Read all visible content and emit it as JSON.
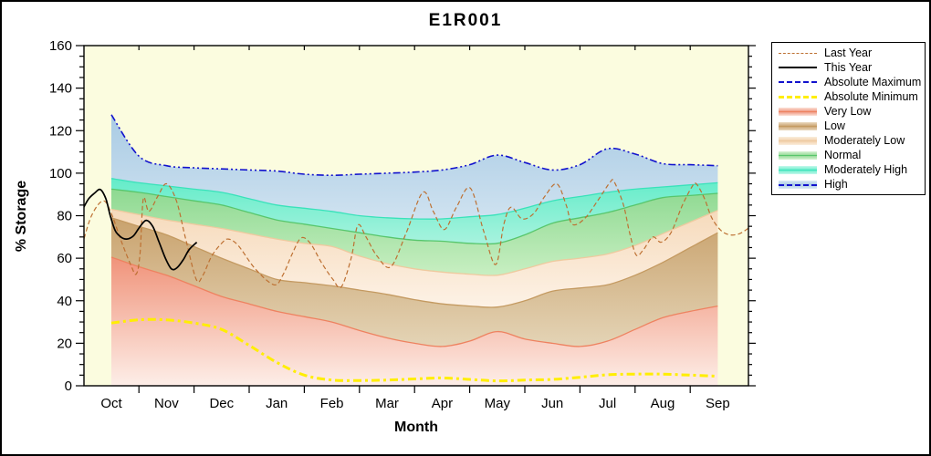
{
  "chart": {
    "title": "E1R001",
    "x_axis": {
      "label": "Month",
      "labels": [
        "Oct",
        "Nov",
        "Dec",
        "Jan",
        "Feb",
        "Mar",
        "Apr",
        "May",
        "Jun",
        "Jul",
        "Aug",
        "Sep"
      ]
    },
    "y_axis": {
      "label": "% Storage",
      "min": 0,
      "max": 160,
      "major_step": 20,
      "minor_step": 5
    },
    "legend": {
      "items": [
        {
          "label": "Last Year",
          "type": "line",
          "stroke": "#bd7032",
          "style": "dashed",
          "weight": 1
        },
        {
          "label": "This Year",
          "type": "line",
          "stroke": "#000000",
          "style": "solid",
          "weight": 2
        },
        {
          "label": "Absolute Maximum",
          "type": "line",
          "stroke": "#1212cd",
          "style": "dashed",
          "weight": 2
        },
        {
          "label": "Absolute Minimum",
          "type": "line",
          "stroke": "#ffee00",
          "style": "dashed",
          "weight": 3
        },
        {
          "label": "Very Low",
          "type": "band",
          "fill": "#f0937a",
          "pale": "#fbe2da",
          "edge": "#ee8260"
        },
        {
          "label": "Low",
          "type": "band",
          "fill": "#c9a26d",
          "pale": "#ead9c0",
          "edge": "#c49a61"
        },
        {
          "label": "Moderately Low",
          "type": "band",
          "fill": "#f2cfa8",
          "pale": "#faeedd",
          "edge": "#edc9a0"
        },
        {
          "label": "Normal",
          "type": "band",
          "fill": "#8ed991",
          "pale": "#d8f2d5",
          "edge": "#57c66c"
        },
        {
          "label": "Moderately High",
          "type": "band",
          "fill": "#63ecc9",
          "pale": "#c6f8ec",
          "edge": "#39e2ba"
        },
        {
          "label": "High",
          "type": "band-line",
          "fill": "#a9cbe4",
          "pale": "#dceaf4",
          "edge": "#1212cd"
        }
      ]
    },
    "colors": {
      "plot_background": "#fbfcdf",
      "frame": "#000000"
    }
  },
  "chart_data": {
    "type": "area",
    "title": "E1R001",
    "xlabel": "Month",
    "ylabel": "% Storage",
    "ylim": [
      0,
      160
    ],
    "x_unit": "months from Oct (0=Oct tick, 11=Sep tick)",
    "months": [
      "Oct",
      "Nov",
      "Dec",
      "Jan",
      "Feb",
      "Mar",
      "Apr",
      "May",
      "Jun",
      "Jul",
      "Aug",
      "Sep"
    ],
    "band_grid_x": [
      0,
      0.5,
      1,
      1.5,
      2,
      2.5,
      3,
      3.5,
      4,
      4.5,
      5,
      5.5,
      6,
      6.5,
      7,
      7.5,
      8,
      8.5,
      9,
      9.5,
      10,
      10.5,
      11
    ],
    "bands": [
      {
        "name": "Very Low",
        "top": "#f0937a",
        "bottom": "#fdeee8",
        "edge": "#ee8260",
        "upper": [
          60.5,
          56,
          52,
          47,
          42,
          38.5,
          35,
          32.5,
          30,
          26,
          22.5,
          20,
          18.5,
          21,
          25.5,
          22,
          20,
          18.5,
          21,
          26.5,
          32,
          35,
          37.5
        ]
      },
      {
        "name": "Low",
        "top": "#c9a26d",
        "bottom": "#e4d4b6",
        "edge": "#c49a61",
        "upper": [
          79,
          75,
          71,
          65.5,
          60,
          55,
          50,
          48.5,
          47,
          45,
          43,
          40.5,
          38.5,
          37.5,
          37,
          40,
          44.5,
          46,
          47.5,
          52,
          58,
          65,
          72
        ]
      },
      {
        "name": "Moderately Low",
        "top": "#f6dabb",
        "bottom": "#fdf2e6",
        "edge": "#eeca9f",
        "upper": [
          83,
          80.5,
          78,
          76,
          74,
          71.5,
          69,
          67,
          65.5,
          61,
          57.5,
          55,
          53.5,
          52.5,
          52,
          55,
          58.5,
          60,
          62,
          66,
          71.5,
          77,
          82.5
        ]
      },
      {
        "name": "Normal",
        "top": "#8ed991",
        "bottom": "#c8efc2",
        "edge": "#57c66c",
        "upper": [
          92.5,
          91,
          89,
          87,
          85,
          81.5,
          78,
          76,
          74,
          72,
          70,
          68.5,
          68,
          67,
          67,
          71,
          76.5,
          79,
          81.5,
          85,
          88.5,
          89.5,
          90.5
        ]
      },
      {
        "name": "Moderately High",
        "top": "#63ecc9",
        "bottom": "#a8f3de",
        "edge": "#39e2ba",
        "upper": [
          97.5,
          95.5,
          94,
          92.5,
          91,
          88,
          85,
          83.5,
          82,
          80,
          79,
          78.5,
          78.5,
          79.5,
          80.5,
          83.5,
          87,
          89,
          91,
          92.5,
          93.5,
          94.5,
          95.5
        ]
      },
      {
        "name": "High",
        "top": "#a9cbe4",
        "bottom": "#cfe2f0",
        "edge": null,
        "upper": [
          127.5,
          108,
          103.5,
          102.5,
          102,
          101.5,
          101,
          99.5,
          99,
          99.5,
          100,
          100.5,
          101.5,
          104,
          108.5,
          105,
          101.5,
          104,
          111.5,
          109,
          104.5,
          104,
          103.5
        ]
      }
    ],
    "lines": [
      {
        "name": "Absolute Maximum",
        "color": "#1212cd",
        "width": 1.6,
        "dash": "8 3 2 3 2 3",
        "values": [
          127.5,
          108,
          103.5,
          102.5,
          102,
          101.5,
          101,
          99.5,
          99,
          99.5,
          100,
          100.5,
          101.5,
          104,
          108.5,
          105,
          101.5,
          104,
          111.5,
          109,
          104.5,
          104,
          103.5
        ]
      },
      {
        "name": "Absolute Minimum",
        "color": "#ffee00",
        "width": 3,
        "dash": "9 4 3 4",
        "values": [
          29.5,
          31,
          31,
          29.5,
          26.5,
          19,
          11,
          5,
          2.7,
          2.5,
          2.7,
          3.2,
          3.7,
          3,
          2.3,
          2.7,
          3,
          4,
          5.2,
          5.5,
          5.5,
          5,
          4.5
        ]
      },
      {
        "name": "Last Year",
        "color": "#bd7032",
        "width": 1.2,
        "dash": "5 3",
        "points": [
          [
            -0.53,
            66
          ],
          [
            -0.36,
            80
          ],
          [
            -0.15,
            87
          ],
          [
            0,
            81
          ],
          [
            0.18,
            68
          ],
          [
            0.35,
            57
          ],
          [
            0.45,
            52.5
          ],
          [
            0.52,
            62
          ],
          [
            0.58,
            88
          ],
          [
            0.68,
            82
          ],
          [
            0.84,
            89
          ],
          [
            1.0,
            95
          ],
          [
            1.18,
            87
          ],
          [
            1.34,
            70
          ],
          [
            1.54,
            50
          ],
          [
            1.66,
            52
          ],
          [
            1.82,
            61
          ],
          [
            2.0,
            67
          ],
          [
            2.12,
            69
          ],
          [
            2.3,
            66
          ],
          [
            2.61,
            55
          ],
          [
            2.95,
            47.5
          ],
          [
            3.11,
            52
          ],
          [
            3.28,
            62
          ],
          [
            3.44,
            69.5
          ],
          [
            3.61,
            67
          ],
          [
            3.81,
            58
          ],
          [
            4.02,
            50
          ],
          [
            4.17,
            46.5
          ],
          [
            4.35,
            60
          ],
          [
            4.47,
            75.5
          ],
          [
            4.62,
            70
          ],
          [
            4.82,
            61
          ],
          [
            5.07,
            56
          ],
          [
            5.35,
            72
          ],
          [
            5.65,
            91
          ],
          [
            5.84,
            82
          ],
          [
            6.04,
            73.5
          ],
          [
            6.26,
            84
          ],
          [
            6.51,
            93
          ],
          [
            6.75,
            73
          ],
          [
            6.97,
            57
          ],
          [
            7.12,
            76
          ],
          [
            7.25,
            84
          ],
          [
            7.45,
            78.5
          ],
          [
            7.66,
            81
          ],
          [
            7.86,
            89
          ],
          [
            8.08,
            95
          ],
          [
            8.25,
            85
          ],
          [
            8.36,
            76
          ],
          [
            8.58,
            78.5
          ],
          [
            8.82,
            87
          ],
          [
            9.04,
            95.5
          ],
          [
            9.12,
            96
          ],
          [
            9.29,
            85
          ],
          [
            9.4,
            72
          ],
          [
            9.52,
            61.5
          ],
          [
            9.65,
            64
          ],
          [
            9.82,
            70
          ],
          [
            9.97,
            67.5
          ],
          [
            10.15,
            72
          ],
          [
            10.36,
            85
          ],
          [
            10.53,
            93.5
          ],
          [
            10.61,
            95
          ],
          [
            10.76,
            88
          ],
          [
            10.89,
            79
          ],
          [
            11.06,
            73
          ],
          [
            11.22,
            71
          ],
          [
            11.39,
            71.5
          ],
          [
            11.55,
            74
          ]
        ]
      },
      {
        "name": "This Year",
        "color": "#000000",
        "width": 1.7,
        "dash": null,
        "points": [
          [
            -0.5,
            84
          ],
          [
            -0.41,
            88
          ],
          [
            -0.31,
            90.5
          ],
          [
            -0.2,
            92.3
          ],
          [
            -0.1,
            88
          ],
          [
            -0.02,
            80
          ],
          [
            0.07,
            73
          ],
          [
            0.17,
            70
          ],
          [
            0.28,
            69
          ],
          [
            0.4,
            70.5
          ],
          [
            0.51,
            74.5
          ],
          [
            0.63,
            77.8
          ],
          [
            0.75,
            75
          ],
          [
            0.86,
            68
          ],
          [
            0.98,
            60
          ],
          [
            1.09,
            55
          ],
          [
            1.19,
            55.5
          ],
          [
            1.31,
            59.5
          ],
          [
            1.41,
            64
          ],
          [
            1.55,
            67.5
          ]
        ]
      }
    ],
    "layout": {
      "legend_position": "outside-top-right",
      "grid": false,
      "x_ticks": "at half-month boundaries, labels centered between ticks"
    }
  }
}
